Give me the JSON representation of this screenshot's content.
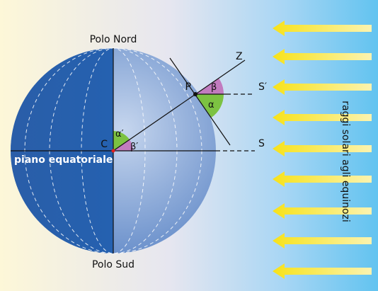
{
  "labels": {
    "north": "Polo Nord",
    "south": "Polo Sud",
    "zenith": "Z",
    "point": "P",
    "s_prime": "S′",
    "s": "S",
    "center": "C",
    "equator": "piano equatoriale",
    "rays": "raggi solari agli equinozi",
    "alpha": "α",
    "beta": "β",
    "alpha_prime": "α′",
    "beta_prime": "β′"
  }
}
